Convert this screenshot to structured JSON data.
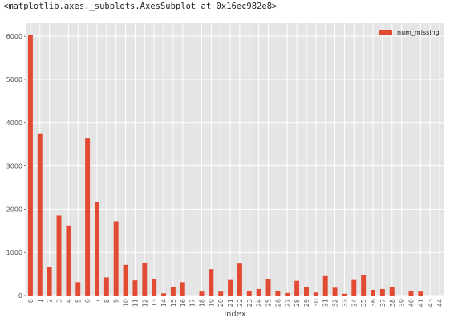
{
  "header": {
    "repr_text": "<matplotlib.axes._subplots.AxesSubplot at 0x16ec982e8>"
  },
  "colors": {
    "bar": "#E24A33",
    "plot_background": "#E5E5E5",
    "grid": "#FFFFFF",
    "text": "#555555"
  },
  "chart_data": {
    "type": "bar",
    "style": "ggplot",
    "xlabel": "index",
    "ylabel": "",
    "ylim": [
      0,
      6300
    ],
    "yticks": [
      0,
      1000,
      2000,
      3000,
      4000,
      5000,
      6000
    ],
    "grid": true,
    "legend_position": "top-right",
    "categories": [
      "0",
      "1",
      "2",
      "3",
      "4",
      "5",
      "6",
      "7",
      "8",
      "9",
      "10",
      "11",
      "12",
      "13",
      "14",
      "15",
      "16",
      "17",
      "18",
      "19",
      "20",
      "21",
      "22",
      "23",
      "24",
      "25",
      "26",
      "27",
      "28",
      "29",
      "30",
      "31",
      "32",
      "33",
      "34",
      "35",
      "36",
      "37",
      "38",
      "39",
      "40",
      "41",
      "43",
      "44"
    ],
    "series": [
      {
        "name": "num_missing",
        "values": [
          6030,
          3740,
          650,
          1850,
          1620,
          310,
          3640,
          2170,
          420,
          1720,
          710,
          350,
          760,
          380,
          50,
          190,
          310,
          0,
          90,
          610,
          90,
          360,
          740,
          110,
          150,
          380,
          100,
          60,
          340,
          190,
          70,
          450,
          180,
          40,
          360,
          480,
          130,
          150,
          190,
          0,
          100,
          90,
          0,
          0
        ]
      }
    ]
  }
}
